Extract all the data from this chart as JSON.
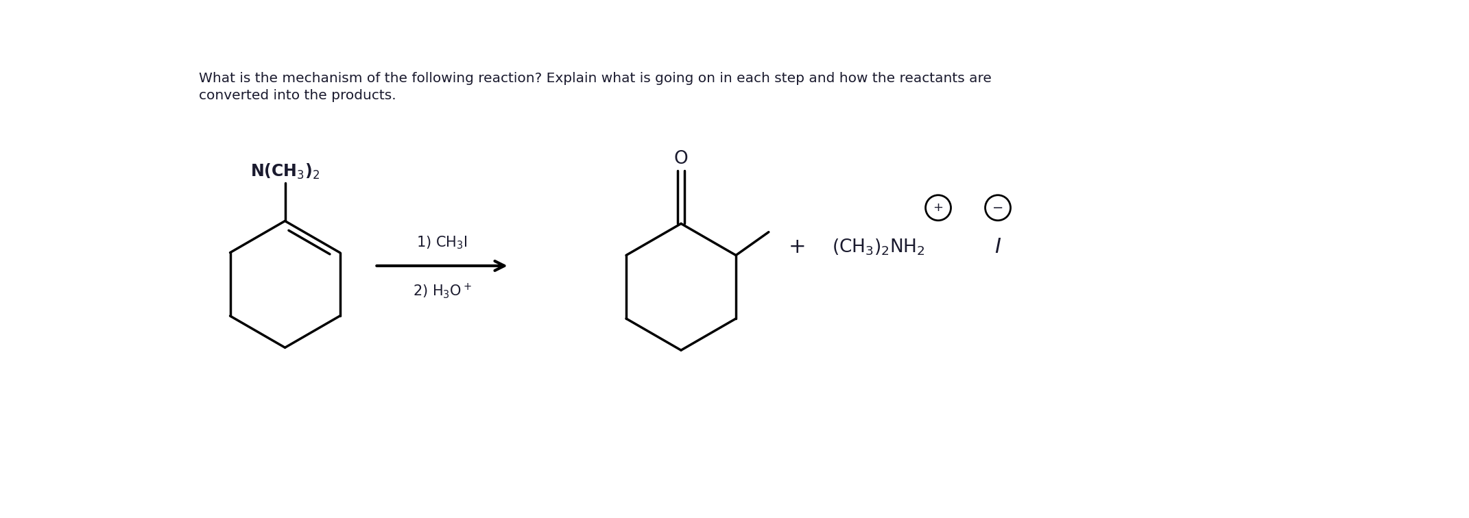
{
  "title_text": "What is the mechanism of the following reaction? Explain what is going on in each step and how the reactants are\nconverted into the products.",
  "title_fontsize": 14.5,
  "title_color": "#1a1a2e",
  "background_color": "#ffffff",
  "fig_width": 21.42,
  "fig_height": 7.56,
  "dpi": 100,
  "reagent1_label": "1) CH₃I",
  "reagent2_label": "2) H₃O⁺",
  "line_color": "#000000",
  "text_color": "#1a1a2e",
  "chem_text_color": "#1a1a2e",
  "lw": 2.5
}
